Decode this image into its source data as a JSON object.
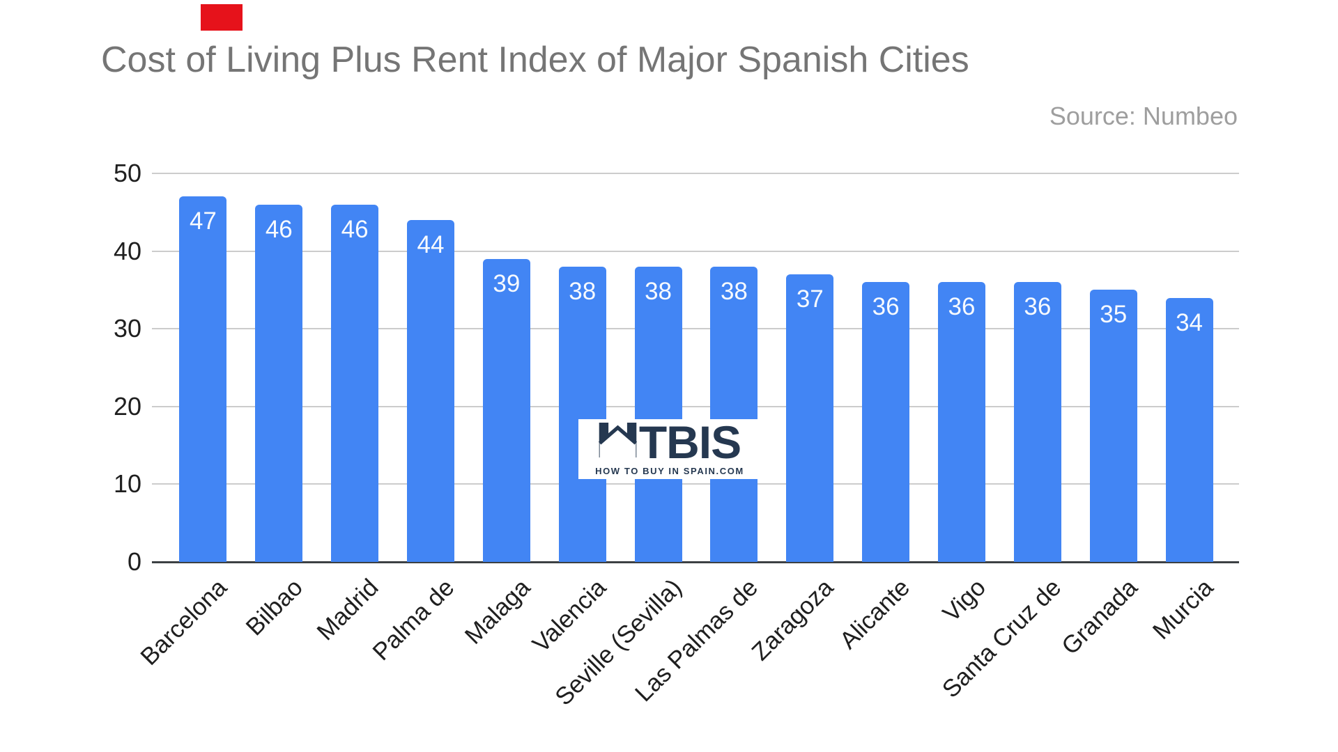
{
  "chart_data": {
    "type": "bar",
    "title": "Cost of Living Plus Rent Index of Major Spanish Cities",
    "source": "Source: Numbeo",
    "categories": [
      "Barcelona",
      "Bilbao",
      "Madrid",
      "Palma de",
      "Malaga",
      "Valencia",
      "Seville (Sevilla)",
      "Las Palmas de",
      "Zaragoza",
      "Alicante",
      "Vigo",
      "Santa Cruz de",
      "Granada",
      "Murcia"
    ],
    "values": [
      47,
      46,
      46,
      44,
      39,
      38,
      38,
      38,
      37,
      36,
      36,
      36,
      35,
      34
    ],
    "xlabel": "",
    "ylabel": "",
    "ylim": [
      0,
      50
    ],
    "yticks": [
      0,
      10,
      20,
      30,
      40,
      50
    ],
    "grid": true,
    "legend": "none",
    "bar_color": "#4285f4",
    "value_label_color": "#ffffff",
    "title_color": "#757575",
    "source_color": "#9e9e9e",
    "axis_text_color": "#1f1f1f",
    "gridline_color": "#cccccc",
    "baseline_color": "#3c4043"
  },
  "watermark": {
    "brand": "HTBIS",
    "brand_suffix": "TBIS",
    "tagline": "HOW TO BUY IN SPAIN.COM",
    "color": "#253850"
  },
  "marker": {
    "color": "#e6121b"
  }
}
